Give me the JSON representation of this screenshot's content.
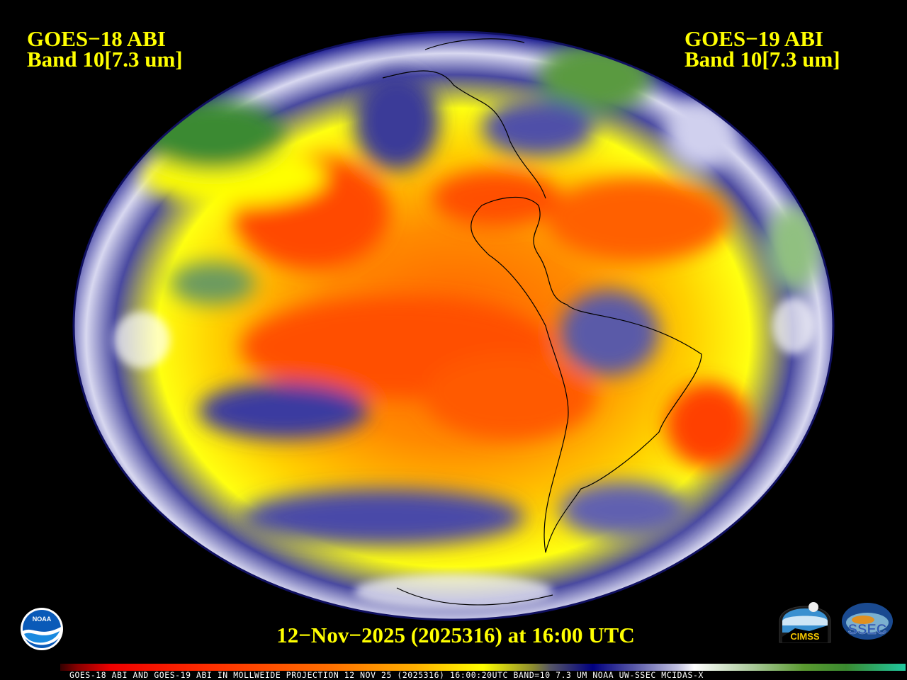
{
  "header": {
    "left_title_line1": "GOES−18 ABI",
    "left_title_line2": "Band 10[7.3 um]",
    "right_title_line1": "GOES−19 ABI",
    "right_title_line2": "Band 10[7.3 um]"
  },
  "footer": {
    "date_label": "12−Nov−2025 (2025316) at 16:00 UTC",
    "caption": "GOES-18 ABI AND GOES-19 ABI IN MOLLWEIDE PROJECTION 12 NOV 25 (2025316) 16:00:20UTC BAND=10 7.3 UM NOAA UW-SSEC MCIDAS-X"
  },
  "logos": {
    "noaa": "NOAA",
    "cimss": "CIMSS",
    "ssec": "SSEC"
  },
  "image": {
    "projection": "Mollweide",
    "colormap": [
      "#800000",
      "#ff0000",
      "#ff8000",
      "#ffff00",
      "#000080",
      "#ffffff",
      "#3a8a30",
      "#20c8a0"
    ]
  }
}
